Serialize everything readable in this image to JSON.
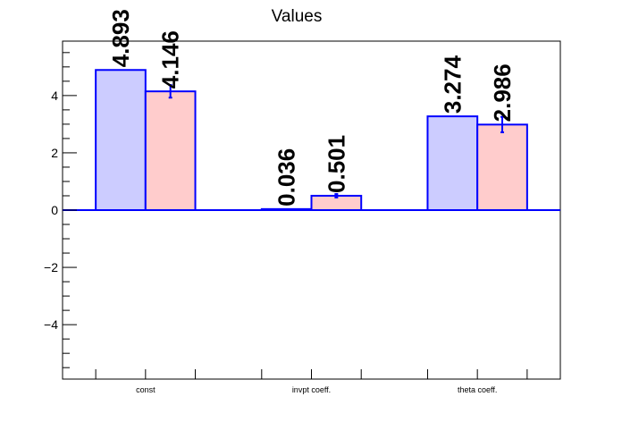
{
  "chart_data": {
    "type": "bar",
    "title": "Values",
    "categories": [
      "const",
      "invpt coeff.",
      "theta coeff."
    ],
    "series": [
      {
        "values": [
          4.893,
          0.036,
          3.274
        ],
        "errors": [
          0.0,
          0.0,
          0.0
        ],
        "color": "#ccccff"
      },
      {
        "values": [
          4.146,
          0.501,
          2.986
        ],
        "errors": [
          0.22,
          0.06,
          0.27
        ],
        "color": "#ffcccc"
      }
    ],
    "data_labels": [
      [
        "4.893",
        "0.036",
        "3.274"
      ],
      [
        "4.146",
        "0.501",
        "2.986"
      ]
    ],
    "yticks": [
      -4,
      -2,
      0,
      2,
      4
    ],
    "ytick_labels": [
      "−4",
      "−2",
      "0",
      "2",
      "4"
    ],
    "ylim": [
      -5.9,
      5.9
    ],
    "xlabel": "",
    "ylabel": "",
    "outline_color": "#0000ff",
    "grid": false
  }
}
